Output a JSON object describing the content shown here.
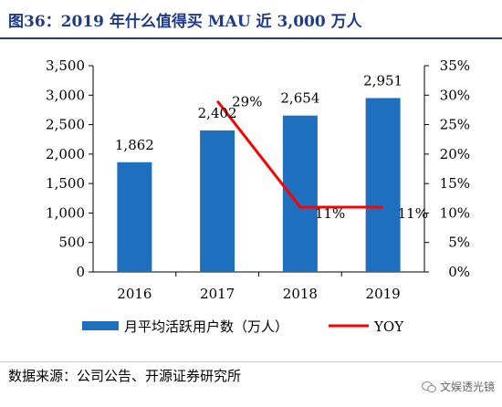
{
  "header": {
    "title": "图36：2019 年什么值得买 MAU 近 3,000 万人"
  },
  "footer": {
    "source": "数据来源：公司公告、开源证券研究所",
    "watermark": "文娱透光镜"
  },
  "chart_data": {
    "type": "bar",
    "categories": [
      "2016",
      "2017",
      "2018",
      "2019"
    ],
    "series": [
      {
        "name": "月平均活跃用户数（万人）",
        "kind": "bar",
        "axis": "left",
        "values": [
          1862,
          2402,
          2654,
          2951
        ],
        "labels": [
          "1,862",
          "2,402",
          "2,654",
          "2,951"
        ],
        "color": "#1f6fbf"
      },
      {
        "name": "YOY",
        "kind": "line",
        "axis": "right",
        "values": [
          null,
          29,
          11,
          11
        ],
        "labels": [
          "",
          "29%",
          "11%",
          "11%"
        ],
        "color": "#ff0000"
      }
    ],
    "y_left": {
      "min": 0,
      "max": 3500,
      "step": 500,
      "ticks": [
        "0",
        "500",
        "1,000",
        "1,500",
        "2,000",
        "2,500",
        "3,000",
        "3,500"
      ]
    },
    "y_right": {
      "min": 0,
      "max": 35,
      "step": 5,
      "ticks": [
        "0%",
        "5%",
        "10%",
        "15%",
        "20%",
        "25%",
        "30%",
        "35%"
      ]
    },
    "grid": false,
    "legend": "bottom"
  }
}
